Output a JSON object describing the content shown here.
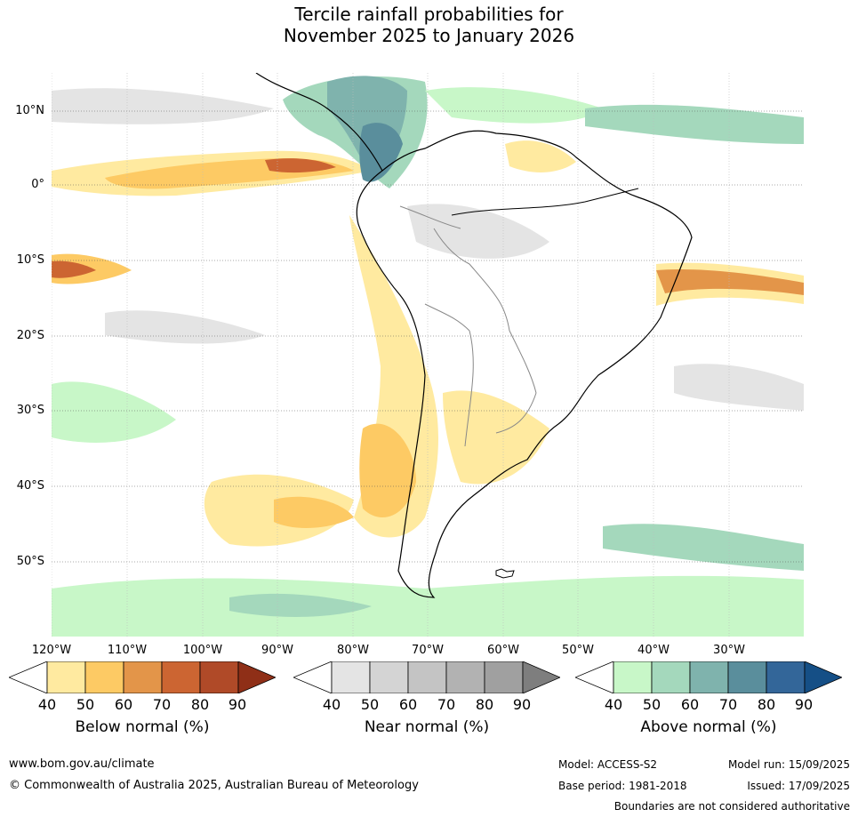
{
  "title": {
    "line1": "Tercile rainfall probabilities for",
    "line2": "November 2025 to January 2026"
  },
  "map": {
    "lat_labels": [
      "10°N",
      "0°",
      "10°S",
      "20°S",
      "30°S",
      "40°S",
      "50°S"
    ],
    "lon_labels": [
      "120°W",
      "110°W",
      "100°W",
      "90°W",
      "80°W",
      "70°W",
      "60°W",
      "50°W",
      "40°W",
      "30°W"
    ],
    "colors": {
      "below": [
        "#ffeaa0",
        "#fdca64",
        "#e39549",
        "#cc6532",
        "#b04a28",
        "#8f2f17"
      ],
      "near": [
        "#e4e4e4",
        "#d4d4d4",
        "#c4c4c4",
        "#b2b2b2",
        "#a0a0a0",
        "#7e7e7e"
      ],
      "above": [
        "#c8f7c8",
        "#a4d8bc",
        "#7fb3ad",
        "#5a8e9c",
        "#336699",
        "#154f86"
      ],
      "land_outline": "#000000",
      "borders": "#888888"
    }
  },
  "colorbars": [
    {
      "title": "Below normal (%)",
      "ticks": [
        "40",
        "50",
        "60",
        "70",
        "80",
        "90"
      ]
    },
    {
      "title": "Near normal (%)",
      "ticks": [
        "40",
        "50",
        "60",
        "70",
        "80",
        "90"
      ]
    },
    {
      "title": "Above normal (%)",
      "ticks": [
        "40",
        "50",
        "60",
        "70",
        "80",
        "90"
      ]
    }
  ],
  "footer": {
    "website": "www.bom.gov.au/climate",
    "copyright": "© Commonwealth of Australia 2025, Australian Bureau of Meteorology",
    "model": "Model: ACCESS-S2",
    "model_run": "Model run: 15/09/2025",
    "base_period": "Base period: 1981-2018",
    "issued": "Issued: 17/09/2025",
    "disclaimer": "Boundaries are not considered authoritative"
  }
}
